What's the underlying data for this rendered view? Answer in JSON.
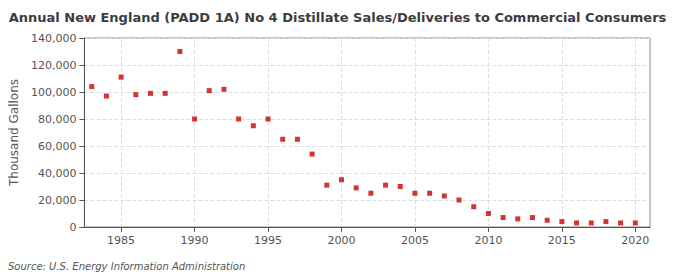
{
  "chart_data": {
    "type": "scatter",
    "title": "Annual New England (PADD 1A) No 4 Distillate Sales/Deliveries to Commercial Consumers",
    "ylabel": "Thousand Gallons",
    "source": "Source: U.S. Energy Information Administration",
    "x": [
      1983,
      1984,
      1985,
      1986,
      1987,
      1988,
      1989,
      1990,
      1991,
      1992,
      1993,
      1994,
      1995,
      1996,
      1997,
      1998,
      1999,
      2000,
      2001,
      2002,
      2003,
      2004,
      2005,
      2006,
      2007,
      2008,
      2009,
      2010,
      2011,
      2012,
      2013,
      2014,
      2015,
      2016,
      2017,
      2018,
      2019,
      2020
    ],
    "values": [
      104000,
      97000,
      111000,
      98000,
      99000,
      99000,
      130000,
      80000,
      101000,
      102000,
      80000,
      75000,
      80000,
      65000,
      65000,
      54000,
      31000,
      35000,
      29000,
      25000,
      31000,
      30000,
      25000,
      25000,
      23000,
      20000,
      15000,
      10000,
      7000,
      6000,
      7000,
      5000,
      4000,
      3000,
      3000,
      4000,
      3000,
      3000
    ],
    "color": "#cc0000",
    "marker": "square",
    "xlim": [
      1982.5,
      2021
    ],
    "xticks": [
      1985,
      1990,
      1995,
      2000,
      2005,
      2010,
      2015,
      2020
    ],
    "ylim": [
      0,
      140000
    ],
    "yticks": [
      0,
      {
        "value": 20000,
        "label": "20,000"
      },
      {
        "value": 40000,
        "label": "40,000"
      },
      {
        "value": 60000,
        "label": "60,000"
      },
      {
        "value": 80000,
        "label": "80,000"
      },
      {
        "value": 100000,
        "label": "100,000"
      },
      {
        "value": 120000,
        "label": "120,000"
      },
      {
        "value": 140000,
        "label": "140,000"
      }
    ],
    "grid": true
  }
}
